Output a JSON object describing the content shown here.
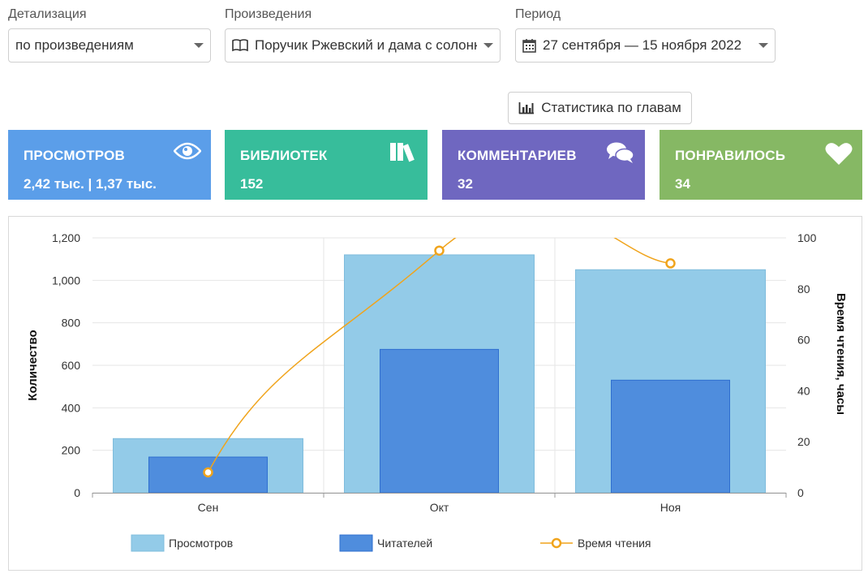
{
  "filters": {
    "detail": {
      "label": "Детализация",
      "value": "по произведениям"
    },
    "works": {
      "label": "Произведения",
      "value": "Поручик Ржевский и дама с солонкой"
    },
    "period": {
      "label": "Период",
      "value": "27 сентября — 15 ноября 2022"
    }
  },
  "chapters_button": {
    "label": "Статистика по главам",
    "icon": "bar-chart-icon"
  },
  "cards": [
    {
      "title": "ПРОСМОТРОВ",
      "value": "2,42 тыс. | 1,37 тыс.",
      "icon": "eye-icon",
      "color": "#5b9ee9"
    },
    {
      "title": "БИБЛИОТЕК",
      "value": "152",
      "icon": "books-icon",
      "color": "#37bd9b"
    },
    {
      "title": "КОММЕНТАРИЕВ",
      "value": "32",
      "icon": "comments-icon",
      "color": "#6f67c0"
    },
    {
      "title": "ПОНРАВИЛОСЬ",
      "value": "34",
      "icon": "heart-icon",
      "color": "#86b864"
    }
  ],
  "chart_data": {
    "type": "bar",
    "categories": [
      "Сен",
      "Окт",
      "Ноя"
    ],
    "series": [
      {
        "name": "Просмотров",
        "type": "bar",
        "axis": "left",
        "values": [
          255,
          1120,
          1050
        ],
        "color": "#93cbe8"
      },
      {
        "name": "Читателей",
        "type": "bar",
        "axis": "left",
        "values": [
          168,
          675,
          530
        ],
        "color": "#4f8ddd"
      },
      {
        "name": "Время чтения",
        "type": "line",
        "axis": "right",
        "values": [
          8,
          95,
          90
        ],
        "color": "#f0a41c"
      }
    ],
    "ylabel": "Количество",
    "ylabel_right": "Время чтения, часы",
    "ylim": [
      0,
      1200
    ],
    "yticks": [
      "0",
      "200",
      "400",
      "600",
      "800",
      "1,000",
      "1,200"
    ],
    "ylim_right": [
      0,
      100
    ],
    "yticks_right": [
      "0",
      "20",
      "40",
      "60",
      "80",
      "100"
    ],
    "grid": true,
    "legend_position": "bottom"
  }
}
